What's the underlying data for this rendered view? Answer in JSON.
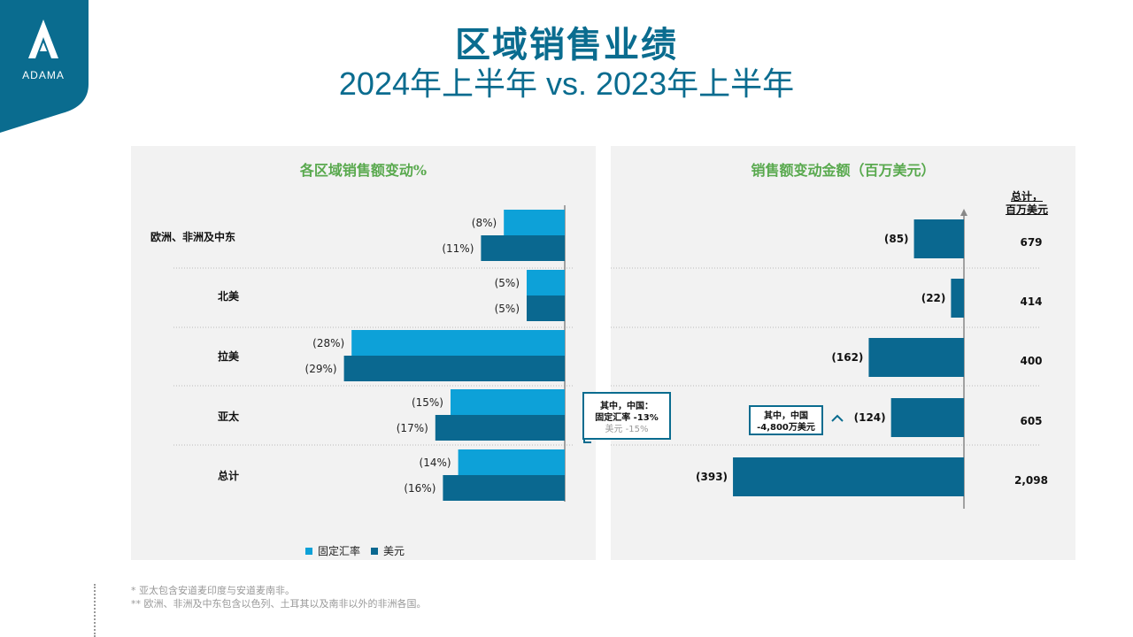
{
  "brand": {
    "name": "ADAMA",
    "color": "#0a6c8f"
  },
  "title": "区域销售业绩",
  "subtitle": "2024年上半年 vs. 2023年上半年",
  "left_panel": {
    "title": "各区域销售额变动%"
  },
  "right_panel": {
    "title": "销售额变动金额（百万美元）",
    "totals_header_line1": "总计，",
    "totals_header_line2": "百万美元"
  },
  "colors": {
    "constant_fx": "#0da1d8",
    "usd": "#0a6890",
    "panel_bg": "#f2f2f2",
    "panel_title": "#59a94e"
  },
  "legend": {
    "constant_fx": "固定汇率",
    "usd": "美元"
  },
  "callout_left": {
    "line1": "其中，中国：",
    "line2": "固定汇率 -13%",
    "line3": "美元 -15%"
  },
  "callout_right": {
    "line1": "其中，中国",
    "line2": "-4,800万美元"
  },
  "footnotes": {
    "line1": "* 亚太包含安道麦印度与安道麦南非。",
    "line2": "** 欧洲、非洲及中东包含以色列、土耳其以及南非以外的非洲各国。"
  },
  "chart_data": [
    {
      "type": "bar",
      "orientation": "horizontal",
      "title": "各区域销售额变动%",
      "categories": [
        "欧洲、非洲及中东",
        "北美",
        "拉美",
        "亚太",
        "总计"
      ],
      "series": [
        {
          "name": "固定汇率",
          "values": [
            -8,
            -5,
            -28,
            -15,
            -14
          ],
          "labels": [
            "(8%)",
            "(5%)",
            "(28%)",
            "(15%)",
            "(14%)"
          ]
        },
        {
          "name": "美元",
          "values": [
            -11,
            -5,
            -29,
            -17,
            -16
          ],
          "labels": [
            "(11%)",
            "(5%)",
            "(29%)",
            "(17%)",
            "(16%)"
          ]
        }
      ]
    },
    {
      "type": "bar",
      "orientation": "horizontal",
      "title": "销售额变动金额（百万美元）",
      "categories": [
        "欧洲、非洲及中东",
        "北美",
        "拉美",
        "亚太",
        "总计"
      ],
      "values": [
        -85,
        -22,
        -162,
        -124,
        -393
      ],
      "labels": [
        "(85)",
        "(22)",
        "(162)",
        "(124)",
        "(393)"
      ],
      "totals": [
        "679",
        "414",
        "400",
        "605",
        "2,098"
      ]
    }
  ]
}
